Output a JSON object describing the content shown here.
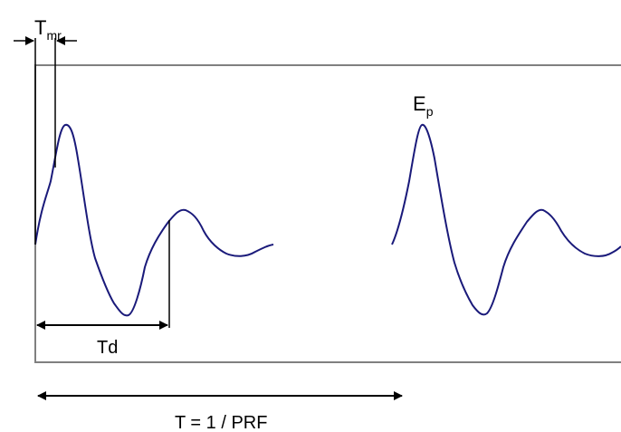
{
  "labels": {
    "tmr_main": "T",
    "tmr_sub": "mr",
    "ep_main": "E",
    "ep_sub": "p",
    "td": "Td",
    "period": "T = 1 / PRF"
  },
  "colors": {
    "waveform": "#1a1a7a",
    "frame": "#808080",
    "lines": "#000000"
  }
}
